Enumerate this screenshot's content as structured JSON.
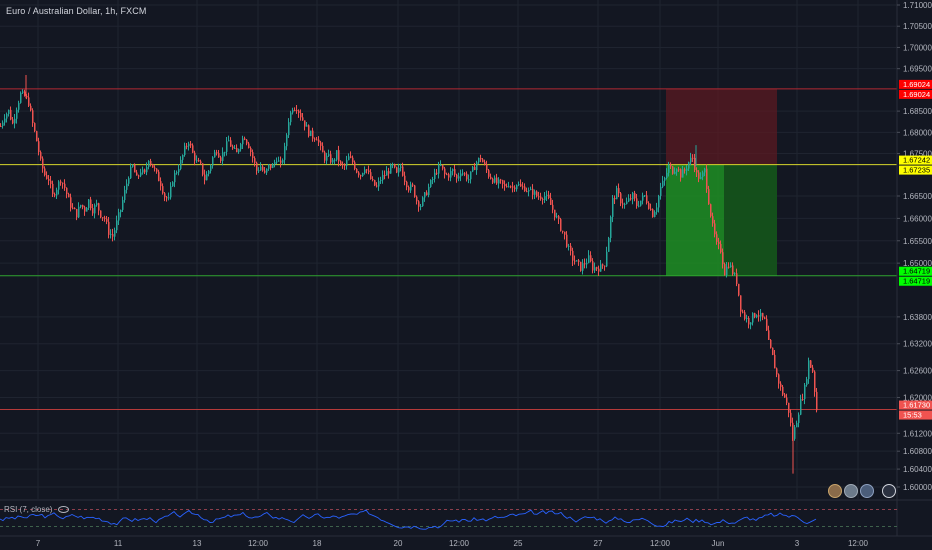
{
  "symbol": {
    "title": "Euro / Australian Dollar, 1h, FXCM"
  },
  "price_axis": {
    "ticks": [
      "1.71000",
      "1.70500",
      "1.70000",
      "1.69500",
      "1.68500",
      "1.68000",
      "1.67500",
      "1.66500",
      "1.66000",
      "1.65500",
      "1.65000",
      "1.63800",
      "1.63200",
      "1.62600",
      "1.62000",
      "1.61200",
      "1.60800",
      "1.60400",
      "1.60000"
    ],
    "tick_values": [
      1.71,
      1.705,
      1.7,
      1.695,
      1.685,
      1.68,
      1.675,
      1.665,
      1.66,
      1.655,
      1.65,
      1.638,
      1.632,
      1.626,
      1.62,
      1.612,
      1.608,
      1.604,
      1.6
    ]
  },
  "levels": [
    {
      "name": "resistance",
      "price": 1.69024,
      "label_a": "1.69024",
      "label_b": "1.69024",
      "color": "#ff0000",
      "line": "#b22833"
    },
    {
      "name": "entry",
      "price": 1.6724,
      "label_a": "1.67242",
      "label_b": "1.67235",
      "color": "#ffff00",
      "line": "#d6d62b"
    },
    {
      "name": "support",
      "price": 1.64719,
      "label_a": "1.64719",
      "label_b": "1.64719",
      "color": "#00ff00",
      "line": "#2fa32f"
    },
    {
      "name": "last-price",
      "price": 1.6173,
      "label_a": "1.61730",
      "label_b": "15:53",
      "color": "#f05350",
      "line": "#b53a3a"
    }
  ],
  "time_axis": {
    "labels": [
      "7",
      "11",
      "13",
      "12:00",
      "18",
      "20",
      "12:00",
      "25",
      "27",
      "12:00",
      "Jun",
      "3",
      "12:00"
    ]
  },
  "rsi": {
    "label": "RSI (7, close)"
  },
  "colors": {
    "background": "#131722",
    "up": "#26a69a",
    "down": "#ef5350",
    "grid": "#1f2430",
    "stop_zone": "#5b1a22",
    "target_zone": "#1b7a1f"
  },
  "chart_data": {
    "type": "candlestick",
    "title": "Euro / Australian Dollar, 1h, FXCM",
    "ylim": [
      1.598,
      1.712
    ],
    "close_path": [
      [
        0,
        1.6815
      ],
      [
        4,
        1.684
      ],
      [
        8,
        1.685
      ],
      [
        12,
        1.682
      ],
      [
        16,
        1.686
      ],
      [
        20,
        1.689
      ],
      [
        24,
        1.6885
      ],
      [
        28,
        1.687
      ],
      [
        32,
        1.682
      ],
      [
        36,
        1.678
      ],
      [
        40,
        1.673
      ],
      [
        44,
        1.67
      ],
      [
        48,
        1.669
      ],
      [
        52,
        1.665
      ],
      [
        56,
        1.667
      ],
      [
        60,
        1.669
      ],
      [
        64,
        1.667
      ],
      [
        68,
        1.664
      ],
      [
        72,
        1.662
      ],
      [
        76,
        1.661
      ],
      [
        80,
        1.663
      ],
      [
        84,
        1.662
      ],
      [
        88,
        1.664
      ],
      [
        92,
        1.662
      ],
      [
        96,
        1.663
      ],
      [
        100,
        1.661
      ],
      [
        104,
        1.66
      ],
      [
        108,
        1.657
      ],
      [
        112,
        1.656
      ],
      [
        116,
        1.659
      ],
      [
        120,
        1.662
      ],
      [
        124,
        1.666
      ],
      [
        128,
        1.67
      ],
      [
        132,
        1.672
      ],
      [
        136,
        1.669
      ],
      [
        140,
        1.671
      ],
      [
        144,
        1.67
      ],
      [
        148,
        1.674
      ],
      [
        152,
        1.672
      ],
      [
        156,
        1.67
      ],
      [
        160,
        1.668
      ],
      [
        164,
        1.665
      ],
      [
        168,
        1.664
      ],
      [
        172,
        1.669
      ],
      [
        176,
        1.671
      ],
      [
        180,
        1.673
      ],
      [
        184,
        1.676
      ],
      [
        188,
        1.678
      ],
      [
        192,
        1.675
      ],
      [
        196,
        1.673
      ],
      [
        200,
        1.672
      ],
      [
        204,
        1.669
      ],
      [
        208,
        1.671
      ],
      [
        212,
        1.674
      ],
      [
        216,
        1.676
      ],
      [
        220,
        1.674
      ],
      [
        224,
        1.676
      ],
      [
        228,
        1.678
      ],
      [
        232,
        1.676
      ],
      [
        236,
        1.675
      ],
      [
        240,
        1.678
      ],
      [
        244,
        1.679
      ],
      [
        248,
        1.677
      ],
      [
        252,
        1.674
      ],
      [
        256,
        1.671
      ],
      [
        260,
        1.672
      ],
      [
        264,
        1.67
      ],
      [
        268,
        1.672
      ],
      [
        272,
        1.672
      ],
      [
        276,
        1.674
      ],
      [
        280,
        1.672
      ],
      [
        284,
        1.676
      ],
      [
        288,
        1.683
      ],
      [
        292,
        1.686
      ],
      [
        296,
        1.686
      ],
      [
        300,
        1.684
      ],
      [
        304,
        1.682
      ],
      [
        308,
        1.68
      ],
      [
        312,
        1.679
      ],
      [
        316,
        1.679
      ],
      [
        320,
        1.676
      ],
      [
        324,
        1.674
      ],
      [
        328,
        1.674
      ],
      [
        332,
        1.673
      ],
      [
        336,
        1.675
      ],
      [
        340,
        1.672
      ],
      [
        344,
        1.672
      ],
      [
        348,
        1.674
      ],
      [
        352,
        1.673
      ],
      [
        356,
        1.671
      ],
      [
        360,
        1.67
      ],
      [
        364,
        1.672
      ],
      [
        368,
        1.67
      ],
      [
        372,
        1.668
      ],
      [
        376,
        1.667
      ],
      [
        380,
        1.669
      ],
      [
        384,
        1.67
      ],
      [
        388,
        1.671
      ],
      [
        392,
        1.672
      ],
      [
        396,
        1.67
      ],
      [
        400,
        1.672
      ],
      [
        404,
        1.669
      ],
      [
        408,
        1.667
      ],
      [
        412,
        1.667
      ],
      [
        416,
        1.664
      ],
      [
        420,
        1.663
      ],
      [
        424,
        1.665
      ],
      [
        428,
        1.667
      ],
      [
        432,
        1.669
      ],
      [
        436,
        1.671
      ],
      [
        440,
        1.672
      ],
      [
        444,
        1.67
      ],
      [
        448,
        1.67
      ],
      [
        452,
        1.671
      ],
      [
        456,
        1.669
      ],
      [
        460,
        1.671
      ],
      [
        464,
        1.67
      ],
      [
        468,
        1.669
      ],
      [
        472,
        1.671
      ],
      [
        476,
        1.673
      ],
      [
        480,
        1.674
      ],
      [
        484,
        1.672
      ],
      [
        488,
        1.67
      ],
      [
        492,
        1.669
      ],
      [
        496,
        1.668
      ],
      [
        500,
        1.668
      ],
      [
        504,
        1.667
      ],
      [
        508,
        1.668
      ],
      [
        512,
        1.667
      ],
      [
        516,
        1.668
      ],
      [
        520,
        1.667
      ],
      [
        524,
        1.667
      ],
      [
        528,
        1.666
      ],
      [
        532,
        1.666
      ],
      [
        536,
        1.665
      ],
      [
        540,
        1.665
      ],
      [
        544,
        1.665
      ],
      [
        548,
        1.664
      ],
      [
        552,
        1.662
      ],
      [
        556,
        1.66
      ],
      [
        560,
        1.658
      ],
      [
        564,
        1.656
      ],
      [
        568,
        1.653
      ],
      [
        572,
        1.651
      ],
      [
        576,
        1.65
      ],
      [
        580,
        1.649
      ],
      [
        584,
        1.65
      ],
      [
        588,
        1.651
      ],
      [
        592,
        1.649
      ],
      [
        596,
        1.649
      ],
      [
        600,
        1.649
      ],
      [
        604,
        1.65
      ],
      [
        608,
        1.656
      ],
      [
        612,
        1.664
      ],
      [
        616,
        1.666
      ],
      [
        620,
        1.664
      ],
      [
        624,
        1.663
      ],
      [
        628,
        1.664
      ],
      [
        632,
        1.665
      ],
      [
        636,
        1.663
      ],
      [
        640,
        1.664
      ],
      [
        644,
        1.665
      ],
      [
        648,
        1.663
      ],
      [
        652,
        1.661
      ],
      [
        656,
        1.663
      ],
      [
        660,
        1.667
      ],
      [
        664,
        1.669
      ],
      [
        668,
        1.672
      ],
      [
        672,
        1.671
      ],
      [
        676,
        1.672
      ],
      [
        680,
        1.67
      ],
      [
        684,
        1.671
      ],
      [
        688,
        1.673
      ],
      [
        692,
        1.674
      ],
      [
        696,
        1.67
      ],
      [
        700,
        1.669
      ],
      [
        704,
        1.671
      ],
      [
        708,
        1.664
      ],
      [
        712,
        1.658
      ],
      [
        716,
        1.654
      ],
      [
        720,
        1.653
      ],
      [
        724,
        1.648
      ],
      [
        728,
        1.65
      ],
      [
        732,
        1.648
      ],
      [
        736,
        1.646
      ],
      [
        740,
        1.64
      ],
      [
        744,
        1.638
      ],
      [
        748,
        1.637
      ],
      [
        752,
        1.638
      ],
      [
        756,
        1.639
      ],
      [
        760,
        1.638
      ],
      [
        764,
        1.637
      ],
      [
        768,
        1.632
      ],
      [
        772,
        1.629
      ],
      [
        776,
        1.625
      ],
      [
        780,
        1.622
      ],
      [
        784,
        1.62
      ],
      [
        788,
        1.617
      ],
      [
        792,
        1.611
      ],
      [
        796,
        1.615
      ],
      [
        800,
        1.619
      ],
      [
        804,
        1.622
      ],
      [
        808,
        1.628
      ],
      [
        812,
        1.626
      ],
      [
        816,
        1.6173
      ]
    ],
    "rsi_ylim": [
      0,
      100
    ],
    "rsi_levels": [
      70,
      30
    ]
  }
}
